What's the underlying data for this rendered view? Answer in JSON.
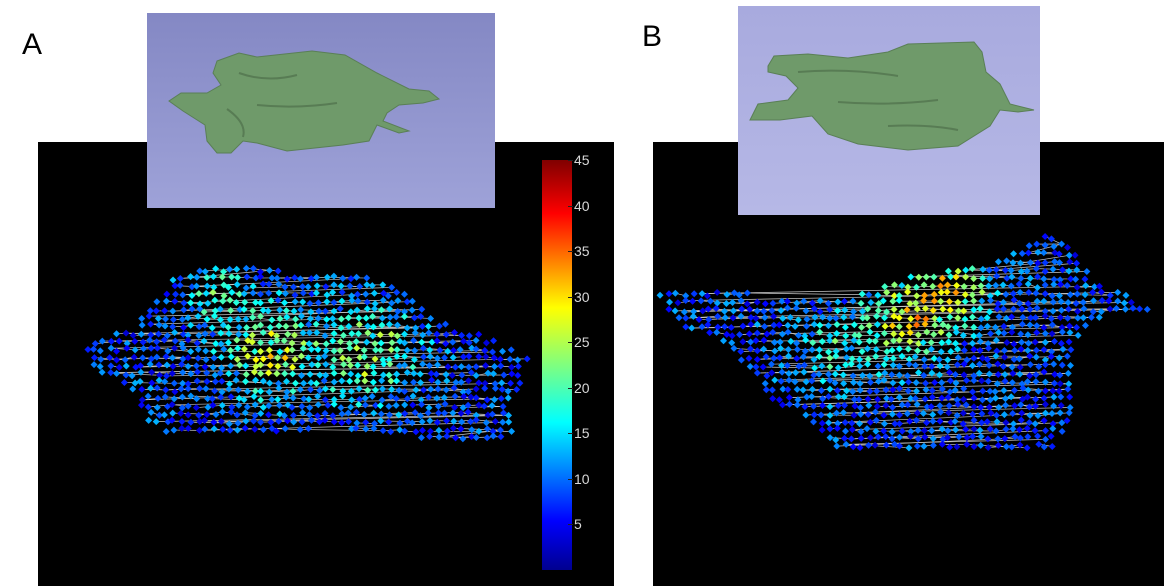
{
  "panel_a": {
    "label": "A"
  },
  "panel_b": {
    "label": "B"
  },
  "colorbar": {
    "colormap": "jet",
    "ticks": [
      "45",
      "40",
      "35",
      "30",
      "25",
      "20",
      "15",
      "10",
      "5"
    ],
    "tick_values": [
      45,
      40,
      35,
      30,
      25,
      20,
      15,
      10,
      5
    ],
    "range": [
      0,
      45
    ],
    "label_color": "#d8d8d8"
  },
  "colors": {
    "plot_background": "#000000",
    "inset_background_a": "#8a8fc8",
    "inset_background_b": "#aeb0e0",
    "mesh_color": "#6f9a6a",
    "wireframe": "#c8c8c8"
  }
}
